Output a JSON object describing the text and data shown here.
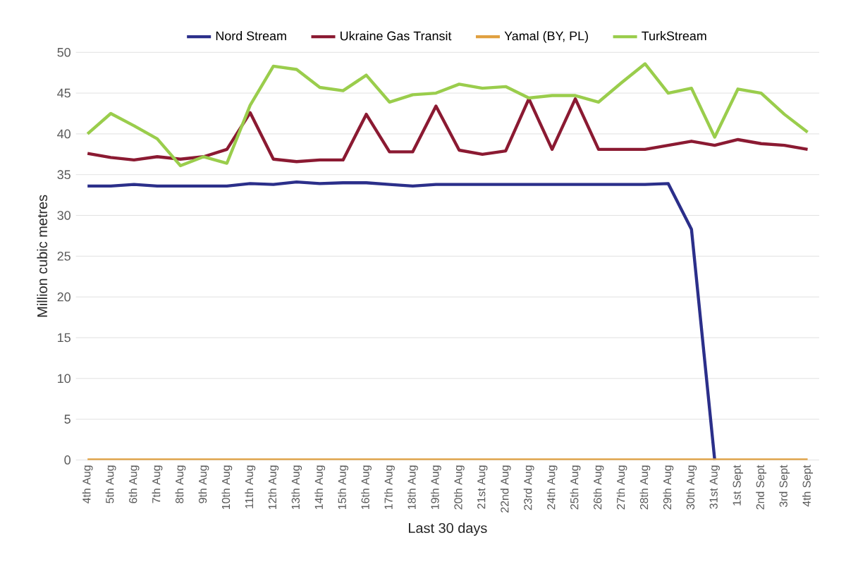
{
  "chart_data": {
    "type": "line",
    "xlabel": "Last 30 days",
    "ylabel": "Million cubic metres",
    "categories": [
      "4th Aug",
      "5th Aug",
      "6th Aug",
      "7th Aug",
      "8th Aug",
      "9th Aug",
      "10th Aug",
      "11th Aug",
      "12th Aug",
      "13th Aug",
      "14th Aug",
      "15th Aug",
      "16th Aug",
      "17th Aug",
      "18th Aug",
      "19th Aug",
      "20th Aug",
      "21st Aug",
      "22nd Aug",
      "23rd Aug",
      "24th Aug",
      "25th Aug",
      "26th Aug",
      "27th Aug",
      "28th Aug",
      "29th Aug",
      "30th Aug",
      "31st Aug",
      "1st Sept",
      "2nd Sept",
      "3rd Sept",
      "4th Sept"
    ],
    "series": [
      {
        "name": "Nord Stream",
        "color": "#2b2f8a",
        "values": [
          33.6,
          33.6,
          33.8,
          33.6,
          33.6,
          33.6,
          33.6,
          33.9,
          33.8,
          34.1,
          33.9,
          34.0,
          34.0,
          33.8,
          33.6,
          33.8,
          33.8,
          33.8,
          33.8,
          33.8,
          33.8,
          33.8,
          33.8,
          33.8,
          33.8,
          33.9,
          28.3,
          0,
          null,
          null,
          null,
          null
        ]
      },
      {
        "name": "Ukraine Gas Transit",
        "color": "#8b1a32",
        "values": [
          37.6,
          37.1,
          36.8,
          37.2,
          36.9,
          37.2,
          38.1,
          42.6,
          36.9,
          36.6,
          36.8,
          36.8,
          42.4,
          37.8,
          37.8,
          43.4,
          38.0,
          37.5,
          37.9,
          44.3,
          38.1,
          44.3,
          38.1,
          38.1,
          38.1,
          38.6,
          39.1,
          38.6,
          39.3,
          38.8,
          38.6,
          38.1
        ]
      },
      {
        "name": "Yamal (BY, PL)",
        "color": "#e0a040",
        "values": [
          0,
          0,
          0,
          0,
          0,
          0,
          0,
          0,
          0,
          0,
          0,
          0,
          0,
          0,
          0,
          0,
          0,
          0,
          0,
          0,
          0,
          0,
          0,
          0,
          0,
          0,
          0,
          0,
          0,
          0,
          0,
          0
        ]
      },
      {
        "name": "TurkStream",
        "color": "#9acd4c",
        "values": [
          40.0,
          42.5,
          41.0,
          39.4,
          36.1,
          37.2,
          36.4,
          43.5,
          48.3,
          47.9,
          45.7,
          45.3,
          47.2,
          43.9,
          44.8,
          45.0,
          46.1,
          45.6,
          45.8,
          44.4,
          44.7,
          44.7,
          43.9,
          46.3,
          48.6,
          45.0,
          45.6,
          39.6,
          45.5,
          45.0,
          42.4,
          40.2
        ]
      }
    ],
    "ylim": [
      0,
      50
    ],
    "yticks": [
      0,
      5,
      10,
      15,
      20,
      25,
      30,
      35,
      40,
      45,
      50
    ],
    "grid": "y",
    "legend": "top",
    "marker": "none",
    "line_style": "solid"
  }
}
